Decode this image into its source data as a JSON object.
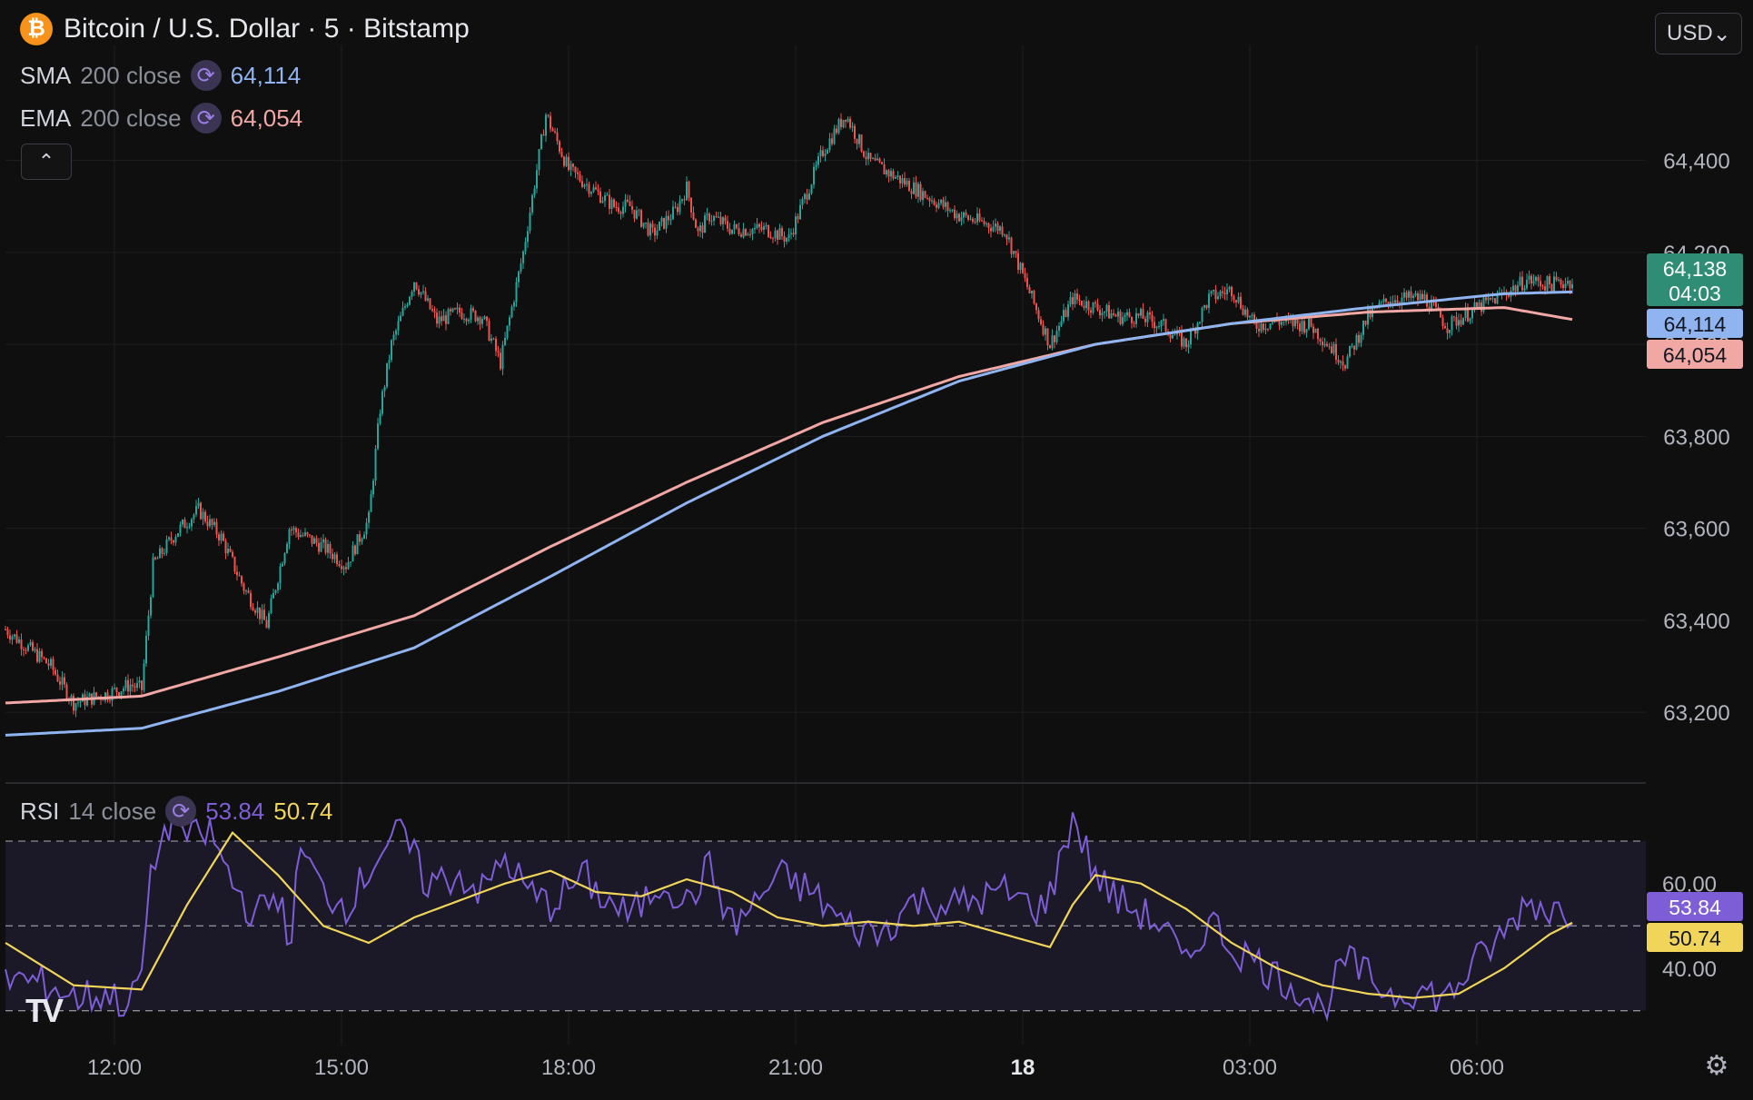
{
  "header": {
    "symbol_title": "Bitcoin / U.S. Dollar · 5 · Bitstamp",
    "btc_icon": "bitcoin-icon",
    "btc_glyph": "₿",
    "currency": "USD",
    "collapse_glyph": "⌃",
    "currency_chevron": "⌄",
    "settings_glyph": "⚙"
  },
  "indicators": {
    "sma": {
      "name": "SMA",
      "params": "200 close",
      "value": "64,114",
      "color": "#8fb4f0"
    },
    "ema": {
      "name": "EMA",
      "params": "200 close",
      "value": "64,054",
      "color": "#f1a7a4"
    },
    "rsi": {
      "name": "RSI",
      "params": "14 close",
      "value": "53.84",
      "ma_value": "50.74",
      "color": "#7e5ed6",
      "ma_color": "#f1d55a"
    },
    "sync_icon": "sync-icon",
    "sync_glyph": "⟳"
  },
  "price_badges": {
    "last_price": "64,138",
    "countdown": "04:03",
    "sma_badge": "64,114",
    "ema_badge": "64,054"
  },
  "rsi_badges": {
    "rsi": "53.84",
    "rsi_ma": "50.74"
  },
  "logo": "TV",
  "colors": {
    "up": "#26a69a",
    "down": "#ef5350",
    "background": "#0f0f0f",
    "grid": "#1f1f22",
    "rsi_band": "#1b1827"
  },
  "chart_data": [
    {
      "type": "candlestick",
      "title": "Bitcoin / U.S. Dollar · 5 · Bitstamp",
      "x_ticks": [
        "12:00",
        "15:00",
        "18:00",
        "21:00",
        "18",
        "03:00",
        "06:00"
      ],
      "y_ticks": [
        "63,200",
        "63,400",
        "63,600",
        "63,800",
        "64,000",
        "64,200",
        "64,400"
      ],
      "ylim": [
        63050,
        64650
      ],
      "grid": true,
      "series": [
        {
          "name": "SMA 200 close",
          "x": [
            0,
            60,
            120,
            180,
            240,
            300,
            360,
            420,
            480,
            540,
            600,
            660,
            690
          ],
          "values": [
            63150,
            63165,
            63245,
            63340,
            63495,
            63655,
            63800,
            63920,
            64000,
            64045,
            64080,
            64110,
            64114
          ]
        },
        {
          "name": "EMA 200 close",
          "x": [
            0,
            60,
            120,
            180,
            240,
            300,
            360,
            420,
            480,
            540,
            600,
            660,
            690
          ],
          "values": [
            63220,
            63235,
            63320,
            63410,
            63560,
            63700,
            63830,
            63930,
            64000,
            64045,
            64070,
            64080,
            64054
          ]
        }
      ],
      "price_path": {
        "x": [
          0,
          20,
          30,
          45,
          55,
          60,
          65,
          75,
          85,
          95,
          105,
          115,
          125,
          140,
          150,
          160,
          165,
          170,
          180,
          190,
          200,
          210,
          218,
          228,
          238,
          248,
          258,
          268,
          275,
          285,
          295,
          300,
          305,
          310,
          320,
          335,
          345,
          360,
          370,
          380,
          400,
          420,
          440,
          460,
          470,
          480,
          490,
          500,
          510,
          520,
          530,
          540,
          550,
          560,
          575,
          590,
          600,
          610,
          625,
          635,
          645,
          660,
          670,
          680,
          690
        ],
        "values": [
          63380,
          63300,
          63220,
          63240,
          63260,
          63250,
          63520,
          63590,
          63640,
          63580,
          63470,
          63390,
          63600,
          63560,
          63520,
          63620,
          63860,
          64000,
          64140,
          64050,
          64070,
          64060,
          63960,
          64200,
          64500,
          64380,
          64340,
          64300,
          64300,
          64240,
          64290,
          64340,
          64240,
          64280,
          64250,
          64250,
          64230,
          64420,
          64500,
          64400,
          64340,
          64280,
          64250,
          64000,
          64100,
          64080,
          64060,
          64060,
          64040,
          64000,
          64100,
          64120,
          64040,
          64050,
          64040,
          63960,
          64060,
          64100,
          64100,
          64040,
          64070,
          64110,
          64140,
          64130,
          64138
        ]
      }
    },
    {
      "type": "line",
      "title": "RSI 14 close",
      "y_ticks": [
        "40.00",
        "60.00"
      ],
      "ylim": [
        22,
        82
      ],
      "bands": [
        30,
        50,
        70
      ],
      "series": [
        {
          "name": "RSI",
          "x": [
            0,
            20,
            30,
            45,
            55,
            60,
            65,
            75,
            80,
            90,
            100,
            110,
            120,
            125,
            130,
            140,
            150,
            160,
            165,
            175,
            185,
            200,
            210,
            220,
            230,
            240,
            255,
            260,
            275,
            290,
            300,
            310,
            320,
            330,
            340,
            355,
            370,
            385,
            400,
            420,
            440,
            455,
            460,
            470,
            480,
            490,
            500,
            510,
            520,
            530,
            540,
            550,
            560,
            570,
            580,
            590,
            600,
            610,
            620,
            635,
            645,
            660,
            670,
            680,
            690
          ],
          "values": [
            38,
            36,
            33,
            34,
            31,
            40,
            65,
            78,
            70,
            72,
            60,
            52,
            58,
            45,
            68,
            58,
            55,
            63,
            68,
            72,
            60,
            62,
            58,
            66,
            58,
            55,
            62,
            58,
            52,
            61,
            55,
            64,
            50,
            55,
            62,
            58,
            50,
            48,
            56,
            55,
            58,
            54,
            57,
            76,
            62,
            56,
            53,
            50,
            40,
            52,
            45,
            42,
            38,
            35,
            30,
            42,
            38,
            34,
            35,
            33,
            40,
            48,
            56,
            54,
            53.84
          ]
        },
        {
          "name": "RSI MA",
          "x": [
            0,
            30,
            60,
            80,
            100,
            120,
            140,
            160,
            180,
            200,
            220,
            240,
            260,
            280,
            300,
            320,
            340,
            360,
            380,
            400,
            420,
            440,
            460,
            470,
            480,
            500,
            520,
            540,
            560,
            580,
            600,
            620,
            640,
            660,
            680,
            690
          ],
          "values": [
            46,
            36,
            35,
            55,
            72,
            62,
            50,
            46,
            52,
            56,
            60,
            63,
            58,
            57,
            61,
            58,
            52,
            50,
            51,
            50,
            51,
            48,
            45,
            55,
            62,
            60,
            54,
            46,
            40,
            36,
            34,
            33,
            34,
            40,
            48,
            50.74
          ]
        }
      ]
    }
  ]
}
